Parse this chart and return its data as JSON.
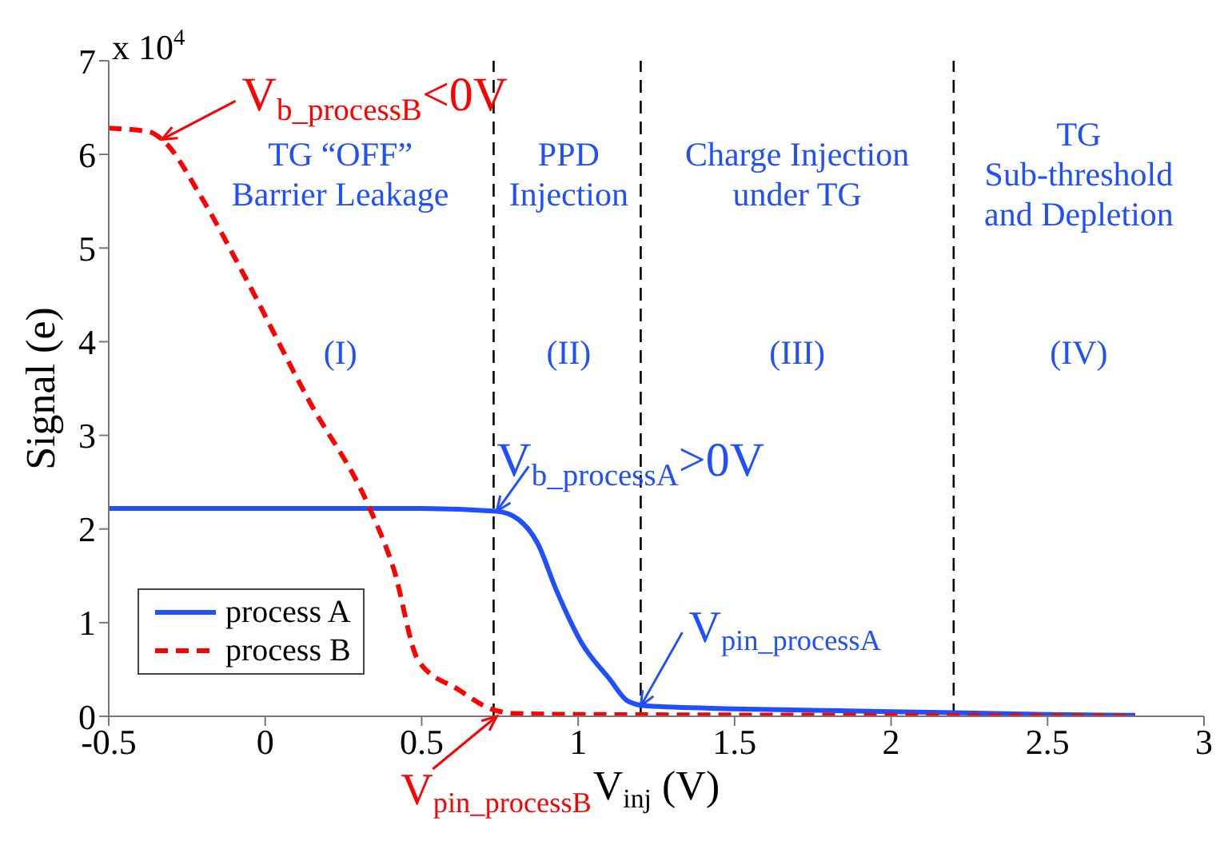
{
  "chart_data": {
    "type": "line",
    "xlabel": "V$_{inj}$ (V)",
    "ylabel": "Signal (e)",
    "xlim": [
      -0.5,
      3
    ],
    "xticks": [
      -0.5,
      0,
      0.5,
      1,
      1.5,
      2,
      2.5,
      3
    ],
    "ylim": [
      0,
      7
    ],
    "yticks": [
      0,
      1,
      2,
      3,
      4,
      5,
      6,
      7
    ],
    "series": [
      {
        "name": "process A",
        "color": "#1f4fff",
        "line_style": "solid",
        "x": [
          -0.5,
          0,
          0.5,
          0.74,
          0.81,
          0.87,
          0.93,
          1.01,
          1.1,
          1.16,
          1.22,
          1.5,
          2.0,
          2.5,
          2.78
        ],
        "values": [
          2.22,
          2.22,
          2.22,
          2.19,
          2.1,
          1.85,
          1.35,
          0.79,
          0.4,
          0.16,
          0.11,
          0.08,
          0.05,
          0.02,
          0.01
        ]
      },
      {
        "name": "process B",
        "color": "#ff0000",
        "line_style": "dashed",
        "x": [
          -0.5,
          -0.37,
          -0.33,
          -0.2,
          -0.08,
          0.14,
          0.33,
          0.41,
          0.49,
          0.62,
          0.72,
          0.8,
          1.0,
          2.0,
          2.78
        ],
        "values": [
          6.28,
          6.24,
          6.16,
          5.52,
          4.79,
          3.37,
          2.25,
          1.58,
          0.59,
          0.28,
          0.08,
          0.03,
          0.02,
          0.01,
          0
        ]
      }
    ],
    "ref_lines": [
      {
        "axis": "x",
        "value": 0.73,
        "color": "#000000",
        "line_style": "dashed"
      },
      {
        "axis": "x",
        "value": 1.2,
        "color": "#000000",
        "line_style": "dashed"
      },
      {
        "axis": "x",
        "value": 2.2,
        "color": "#000000",
        "line_style": "dashed"
      }
    ],
    "annotations": [
      "x 10$^{4}$",
      "TG “OFF”\nBarrier Leakage",
      "(I)",
      "PPD\nInjection",
      "(II)",
      "Charge Injection\nunder TG",
      "(III)",
      "TG\nSub-threshold\nand Depletion",
      "(IV)",
      {
        "text": "V$_{b_processB}$<0V",
        "x": -0.33,
        "y": 6.16
      },
      {
        "text": "V$_{b_processA}$>0V",
        "x": 0.74,
        "y": 2.19
      },
      {
        "text": "V$_{pin_processA}$",
        "x": 1.2,
        "y": 0.11
      },
      {
        "text": "V$_{pin_processB}$",
        "x": 0.74,
        "y": 0
      }
    ],
    "legend": "bottom left",
    "grid": false,
    "marker": "none"
  }
}
